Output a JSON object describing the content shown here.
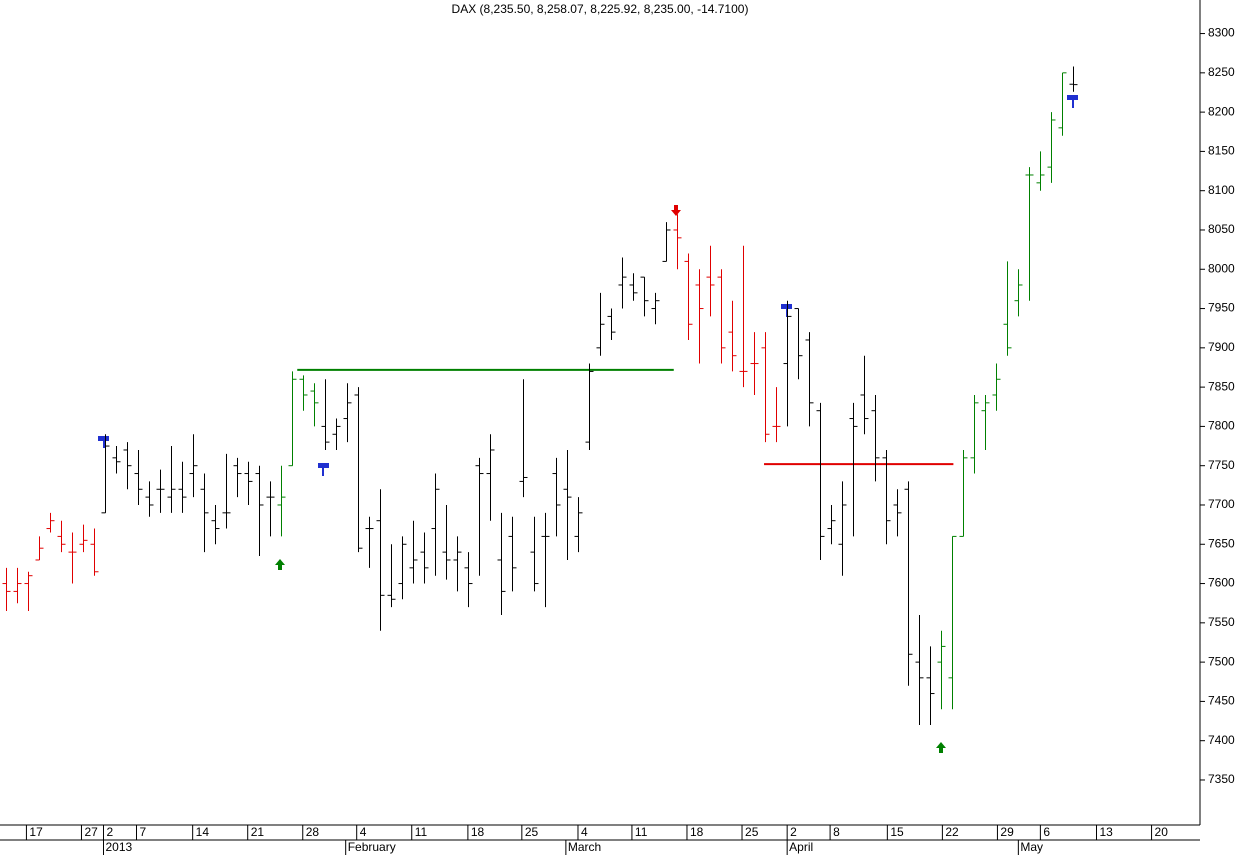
{
  "chart_data": {
    "type": "ohlc",
    "title": "DAX (8,235.50, 8,258.07, 8,225.92, 8,235.00, -14.7100)",
    "series": [
      {
        "open": [
          7600,
          7590,
          7600,
          7630,
          7670,
          7660,
          7640,
          7650,
          7650,
          7690,
          7760,
          7770,
          7740,
          7710,
          7720,
          7710,
          7720,
          7740,
          7720,
          7680,
          7690,
          7750,
          7740,
          7740,
          7710,
          7700,
          7750,
          7860,
          7845,
          7800,
          7790,
          7810,
          7840,
          7670,
          7680,
          7585,
          7600,
          7620,
          7640,
          7670,
          7640,
          7630,
          7620,
          7750,
          7740,
          7630,
          7660,
          7730,
          7640,
          7660,
          7740,
          7720,
          7660,
          7780,
          7900,
          7940,
          7980,
          7980,
          7990,
          7950,
          8010,
          8050,
          8010,
          7980,
          7990,
          7990,
          7920,
          7870,
          7880,
          7900,
          7800,
          7880,
          7950,
          7910,
          7820,
          7670,
          7650,
          7810,
          7840,
          7820,
          7760,
          7700,
          7720,
          7500,
          7480,
          7500,
          7480,
          7660,
          7760,
          7820,
          7840,
          7930,
          7960,
          8120,
          8110,
          8130,
          8180,
          8235.5
        ],
        "high": [
          7620,
          7620,
          7615,
          7660,
          7690,
          7680,
          7665,
          7675,
          7670,
          7790,
          7775,
          7780,
          7770,
          7730,
          7745,
          7775,
          7755,
          7790,
          7740,
          7700,
          7765,
          7760,
          7755,
          7750,
          7730,
          7750,
          7870,
          7865,
          7855,
          7860,
          7810,
          7855,
          7850,
          7685,
          7720,
          7650,
          7660,
          7680,
          7665,
          7740,
          7700,
          7660,
          7640,
          7760,
          7790,
          7690,
          7685,
          7860,
          7685,
          7690,
          7760,
          7770,
          7710,
          7880,
          7970,
          7950,
          8015,
          7995,
          7990,
          7970,
          8060,
          8070,
          8020,
          8000,
          8030,
          8000,
          7960,
          8030,
          7920,
          7920,
          7850,
          7960,
          7950,
          7920,
          7830,
          7700,
          7730,
          7830,
          7890,
          7840,
          7770,
          7720,
          7730,
          7560,
          7520,
          7540,
          7660,
          7770,
          7840,
          7840,
          7880,
          8010,
          8000,
          8130,
          8150,
          8200,
          8250,
          8258.07
        ],
        "low": [
          7565,
          7575,
          7565,
          7630,
          7665,
          7640,
          7600,
          7640,
          7610,
          7690,
          7740,
          7720,
          7700,
          7685,
          7690,
          7690,
          7690,
          7710,
          7640,
          7650,
          7670,
          7710,
          7700,
          7635,
          7660,
          7660,
          7750,
          7820,
          7800,
          7770,
          7770,
          7780,
          7640,
          7620,
          7540,
          7570,
          7580,
          7600,
          7600,
          7610,
          7605,
          7590,
          7570,
          7610,
          7680,
          7560,
          7590,
          7710,
          7590,
          7570,
          7660,
          7630,
          7640,
          7770,
          7890,
          7910,
          7950,
          7960,
          7940,
          7930,
          8010,
          8000,
          7910,
          7880,
          7940,
          7880,
          7870,
          7850,
          7840,
          7780,
          7780,
          7800,
          7860,
          7800,
          7630,
          7650,
          7610,
          7660,
          7790,
          7730,
          7650,
          7660,
          7470,
          7420,
          7420,
          7440,
          7440,
          7660,
          7740,
          7770,
          7820,
          7890,
          7940,
          7960,
          8100,
          8110,
          8170,
          8225.92
        ],
        "close": [
          7590,
          7600,
          7610,
          7645,
          7680,
          7650,
          7640,
          7655,
          7615,
          7775,
          7755,
          7750,
          7720,
          7700,
          7720,
          7720,
          7710,
          7750,
          7690,
          7670,
          7690,
          7740,
          7730,
          7700,
          7710,
          7710,
          7860,
          7840,
          7830,
          7780,
          7800,
          7830,
          7645,
          7670,
          7585,
          7580,
          7650,
          7630,
          7620,
          7720,
          7630,
          7640,
          7600,
          7740,
          7770,
          7590,
          7620,
          7735,
          7600,
          7660,
          7700,
          7710,
          7690,
          7870,
          7930,
          7920,
          7990,
          7970,
          7960,
          7960,
          8050,
          8040,
          7930,
          7950,
          7980,
          7900,
          7890,
          7870,
          7880,
          7790,
          7800,
          7940,
          7890,
          7830,
          7660,
          7680,
          7700,
          7800,
          7810,
          7760,
          7680,
          7690,
          7510,
          7480,
          7460,
          7520,
          7660,
          7760,
          7830,
          7830,
          7860,
          7900,
          7980,
          8120,
          8120,
          8190,
          8250,
          8235
        ],
        "colors": [
          "#e00000",
          "#e00000",
          "#e00000",
          "#e00000",
          "#e00000",
          "#e00000",
          "#e00000",
          "#e00000",
          "#e00000",
          "#000000",
          "#000000",
          "#000000",
          "#000000",
          "#000000",
          "#000000",
          "#000000",
          "#000000",
          "#000000",
          "#000000",
          "#000000",
          "#000000",
          "#000000",
          "#000000",
          "#000000",
          "#000000",
          "#008000",
          "#008000",
          "#008000",
          "#008000",
          "#000000",
          "#000000",
          "#000000",
          "#000000",
          "#000000",
          "#000000",
          "#000000",
          "#000000",
          "#000000",
          "#000000",
          "#000000",
          "#000000",
          "#000000",
          "#000000",
          "#000000",
          "#000000",
          "#000000",
          "#000000",
          "#000000",
          "#000000",
          "#000000",
          "#000000",
          "#000000",
          "#000000",
          "#000000",
          "#000000",
          "#000000",
          "#000000",
          "#000000",
          "#000000",
          "#000000",
          "#000000",
          "#e00000",
          "#e00000",
          "#e00000",
          "#e00000",
          "#e00000",
          "#e00000",
          "#e00000",
          "#e00000",
          "#e00000",
          "#e00000",
          "#000000",
          "#000000",
          "#000000",
          "#000000",
          "#000000",
          "#000000",
          "#000000",
          "#000000",
          "#000000",
          "#000000",
          "#000000",
          "#000000",
          "#000000",
          "#000000",
          "#008000",
          "#008000",
          "#008000",
          "#008000",
          "#008000",
          "#008000",
          "#008000",
          "#008000",
          "#008000",
          "#008000",
          "#008000",
          "#008000",
          "#000000"
        ]
      }
    ],
    "levels": [
      {
        "value": 7872,
        "from": 27,
        "to": 61.2,
        "color": "#008000"
      },
      {
        "value": 7752,
        "from": 69.4,
        "to": 86.6,
        "color": "#e00000"
      }
    ],
    "xlim": [
      0,
      109
    ],
    "xticks": [
      {
        "value": 2.4,
        "label": "17"
      },
      {
        "value": 7.4,
        "label": "27"
      },
      {
        "value": 9.4,
        "label": "2"
      },
      {
        "value": 12.4,
        "label": "7"
      },
      {
        "value": 17.5,
        "label": "14"
      },
      {
        "value": 22.5,
        "label": "21"
      },
      {
        "value": 27.5,
        "label": "28"
      },
      {
        "value": 32.4,
        "label": "4"
      },
      {
        "value": 37.4,
        "label": "11"
      },
      {
        "value": 42.5,
        "label": "18"
      },
      {
        "value": 47.4,
        "label": "25"
      },
      {
        "value": 52.5,
        "label": "4"
      },
      {
        "value": 57.4,
        "label": "11"
      },
      {
        "value": 62.4,
        "label": "18"
      },
      {
        "value": 67.4,
        "label": "25"
      },
      {
        "value": 71.5,
        "label": "2"
      },
      {
        "value": 75.4,
        "label": "8"
      },
      {
        "value": 80.6,
        "label": "15"
      },
      {
        "value": 85.6,
        "label": "22"
      },
      {
        "value": 90.6,
        "label": "29"
      },
      {
        "value": 94.5,
        "label": "6"
      },
      {
        "value": 99.6,
        "label": "13"
      },
      {
        "value": 104.6,
        "label": "20"
      }
    ],
    "month_ticks": [
      {
        "value": 9.4,
        "label": "2013"
      },
      {
        "value": 31.4,
        "label": "February"
      },
      {
        "value": 51.4,
        "label": "March"
      },
      {
        "value": 71.5,
        "label": "April"
      },
      {
        "value": 92.5,
        "label": "May"
      }
    ],
    "ylim": [
      7292.7,
      8342.7
    ],
    "yticks": [
      7350,
      7400,
      7450,
      7500,
      7550,
      7600,
      7650,
      7700,
      7750,
      7800,
      7850,
      7900,
      7950,
      8000,
      8050,
      8100,
      8150,
      8200,
      8250,
      8300
    ]
  }
}
